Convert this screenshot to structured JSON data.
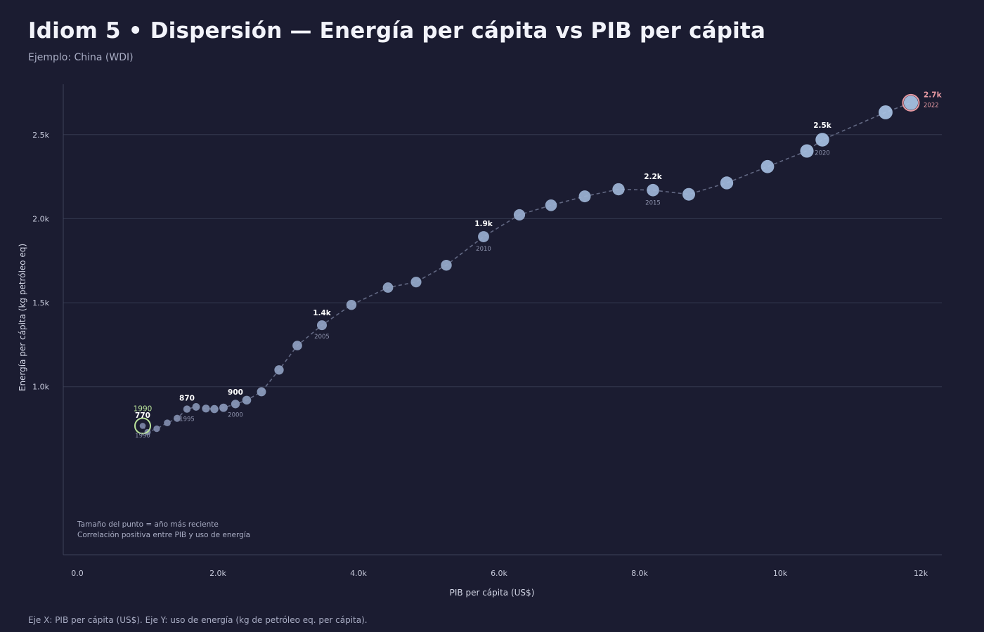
{
  "title": "Idiom 5 • Dispersión — Energía per cápita vs PIB per cápita",
  "subtitle": "Ejemplo: China (WDI)",
  "footer": "Eje X: PIB per cápita (US$). Eje Y: uso de energía (kg de petróleo eq. per cápita).",
  "colors": {
    "background": "#1b1c31",
    "point_old": "#7c86a6",
    "point_new": "#a9c4e6",
    "latest_ring": "#e89aa3",
    "first_ring": "#b9e39a",
    "connector": "#626883"
  },
  "chart_data": {
    "type": "scatter",
    "title": "Idiom 5 • Dispersión — Energía per cápita vs PIB per cápita",
    "xlabel": "PIB per cápita (US$)",
    "ylabel": "Energía per cápita (kg petróleo eq)",
    "xlim": [
      -200,
      12300
    ],
    "ylim": [
      0,
      2800
    ],
    "x_ticks": [
      {
        "value": 0,
        "label": "0.0"
      },
      {
        "value": 2000,
        "label": "2.0k"
      },
      {
        "value": 4000,
        "label": "4.0k"
      },
      {
        "value": 6000,
        "label": "6.0k"
      },
      {
        "value": 8000,
        "label": "8.0k"
      },
      {
        "value": 10000,
        "label": "10k"
      },
      {
        "value": 12000,
        "label": "12k"
      }
    ],
    "y_ticks": [
      {
        "value": 1000,
        "label": "1.0k"
      },
      {
        "value": 1500,
        "label": "1.5k"
      },
      {
        "value": 2000,
        "label": "2.0k"
      },
      {
        "value": 2500,
        "label": "2.5k"
      }
    ],
    "grid": true,
    "points": [
      {
        "year": 1990,
        "x": 930,
        "y": 767
      },
      {
        "year": 1991,
        "x": 1000,
        "y": 730
      },
      {
        "year": 1992,
        "x": 1130,
        "y": 750
      },
      {
        "year": 1993,
        "x": 1280,
        "y": 785
      },
      {
        "year": 1994,
        "x": 1420,
        "y": 812
      },
      {
        "year": 1995,
        "x": 1560,
        "y": 867
      },
      {
        "year": 1996,
        "x": 1690,
        "y": 880
      },
      {
        "year": 1997,
        "x": 1830,
        "y": 870
      },
      {
        "year": 1998,
        "x": 1950,
        "y": 867
      },
      {
        "year": 1999,
        "x": 2080,
        "y": 875
      },
      {
        "year": 2000,
        "x": 2250,
        "y": 897
      },
      {
        "year": 2001,
        "x": 2410,
        "y": 920
      },
      {
        "year": 2002,
        "x": 2620,
        "y": 970
      },
      {
        "year": 2003,
        "x": 2870,
        "y": 1100
      },
      {
        "year": 2004,
        "x": 3130,
        "y": 1245
      },
      {
        "year": 2005,
        "x": 3480,
        "y": 1366
      },
      {
        "year": 2006,
        "x": 3900,
        "y": 1487
      },
      {
        "year": 2007,
        "x": 4420,
        "y": 1590
      },
      {
        "year": 2008,
        "x": 4820,
        "y": 1623
      },
      {
        "year": 2009,
        "x": 5250,
        "y": 1723
      },
      {
        "year": 2010,
        "x": 5780,
        "y": 1893
      },
      {
        "year": 2011,
        "x": 6290,
        "y": 2023
      },
      {
        "year": 2012,
        "x": 6740,
        "y": 2080
      },
      {
        "year": 2013,
        "x": 7220,
        "y": 2133
      },
      {
        "year": 2014,
        "x": 7700,
        "y": 2175
      },
      {
        "year": 2015,
        "x": 8190,
        "y": 2170
      },
      {
        "year": 2016,
        "x": 8700,
        "y": 2145
      },
      {
        "year": 2017,
        "x": 9240,
        "y": 2213
      },
      {
        "year": 2018,
        "x": 9820,
        "y": 2310
      },
      {
        "year": 2019,
        "x": 10380,
        "y": 2403
      },
      {
        "year": 2020,
        "x": 10600,
        "y": 2470
      },
      {
        "year": 2021,
        "x": 11500,
        "y": 2633
      },
      {
        "year": 2022,
        "x": 11860,
        "y": 2690
      }
    ],
    "labels": [
      {
        "year": 1990,
        "value": "770",
        "year_label": "1990"
      },
      {
        "year": 1995,
        "value": "870",
        "year_label": "1995"
      },
      {
        "year": 2000,
        "value": "900",
        "year_label": "2000"
      },
      {
        "year": 2005,
        "value": "1.4k",
        "year_label": "2005"
      },
      {
        "year": 2010,
        "value": "1.9k",
        "year_label": "2010"
      },
      {
        "year": 2015,
        "value": "2.2k",
        "year_label": "2015"
      },
      {
        "year": 2020,
        "value": "2.5k",
        "year_label": "2020"
      },
      {
        "year": 2022,
        "value": "2.7k",
        "year_label": "2022"
      }
    ],
    "first_year_highlight": "1990",
    "notes": [
      "Tamaño del punto = año más reciente",
      "Correlación positiva entre PIB y uso de energía"
    ]
  }
}
